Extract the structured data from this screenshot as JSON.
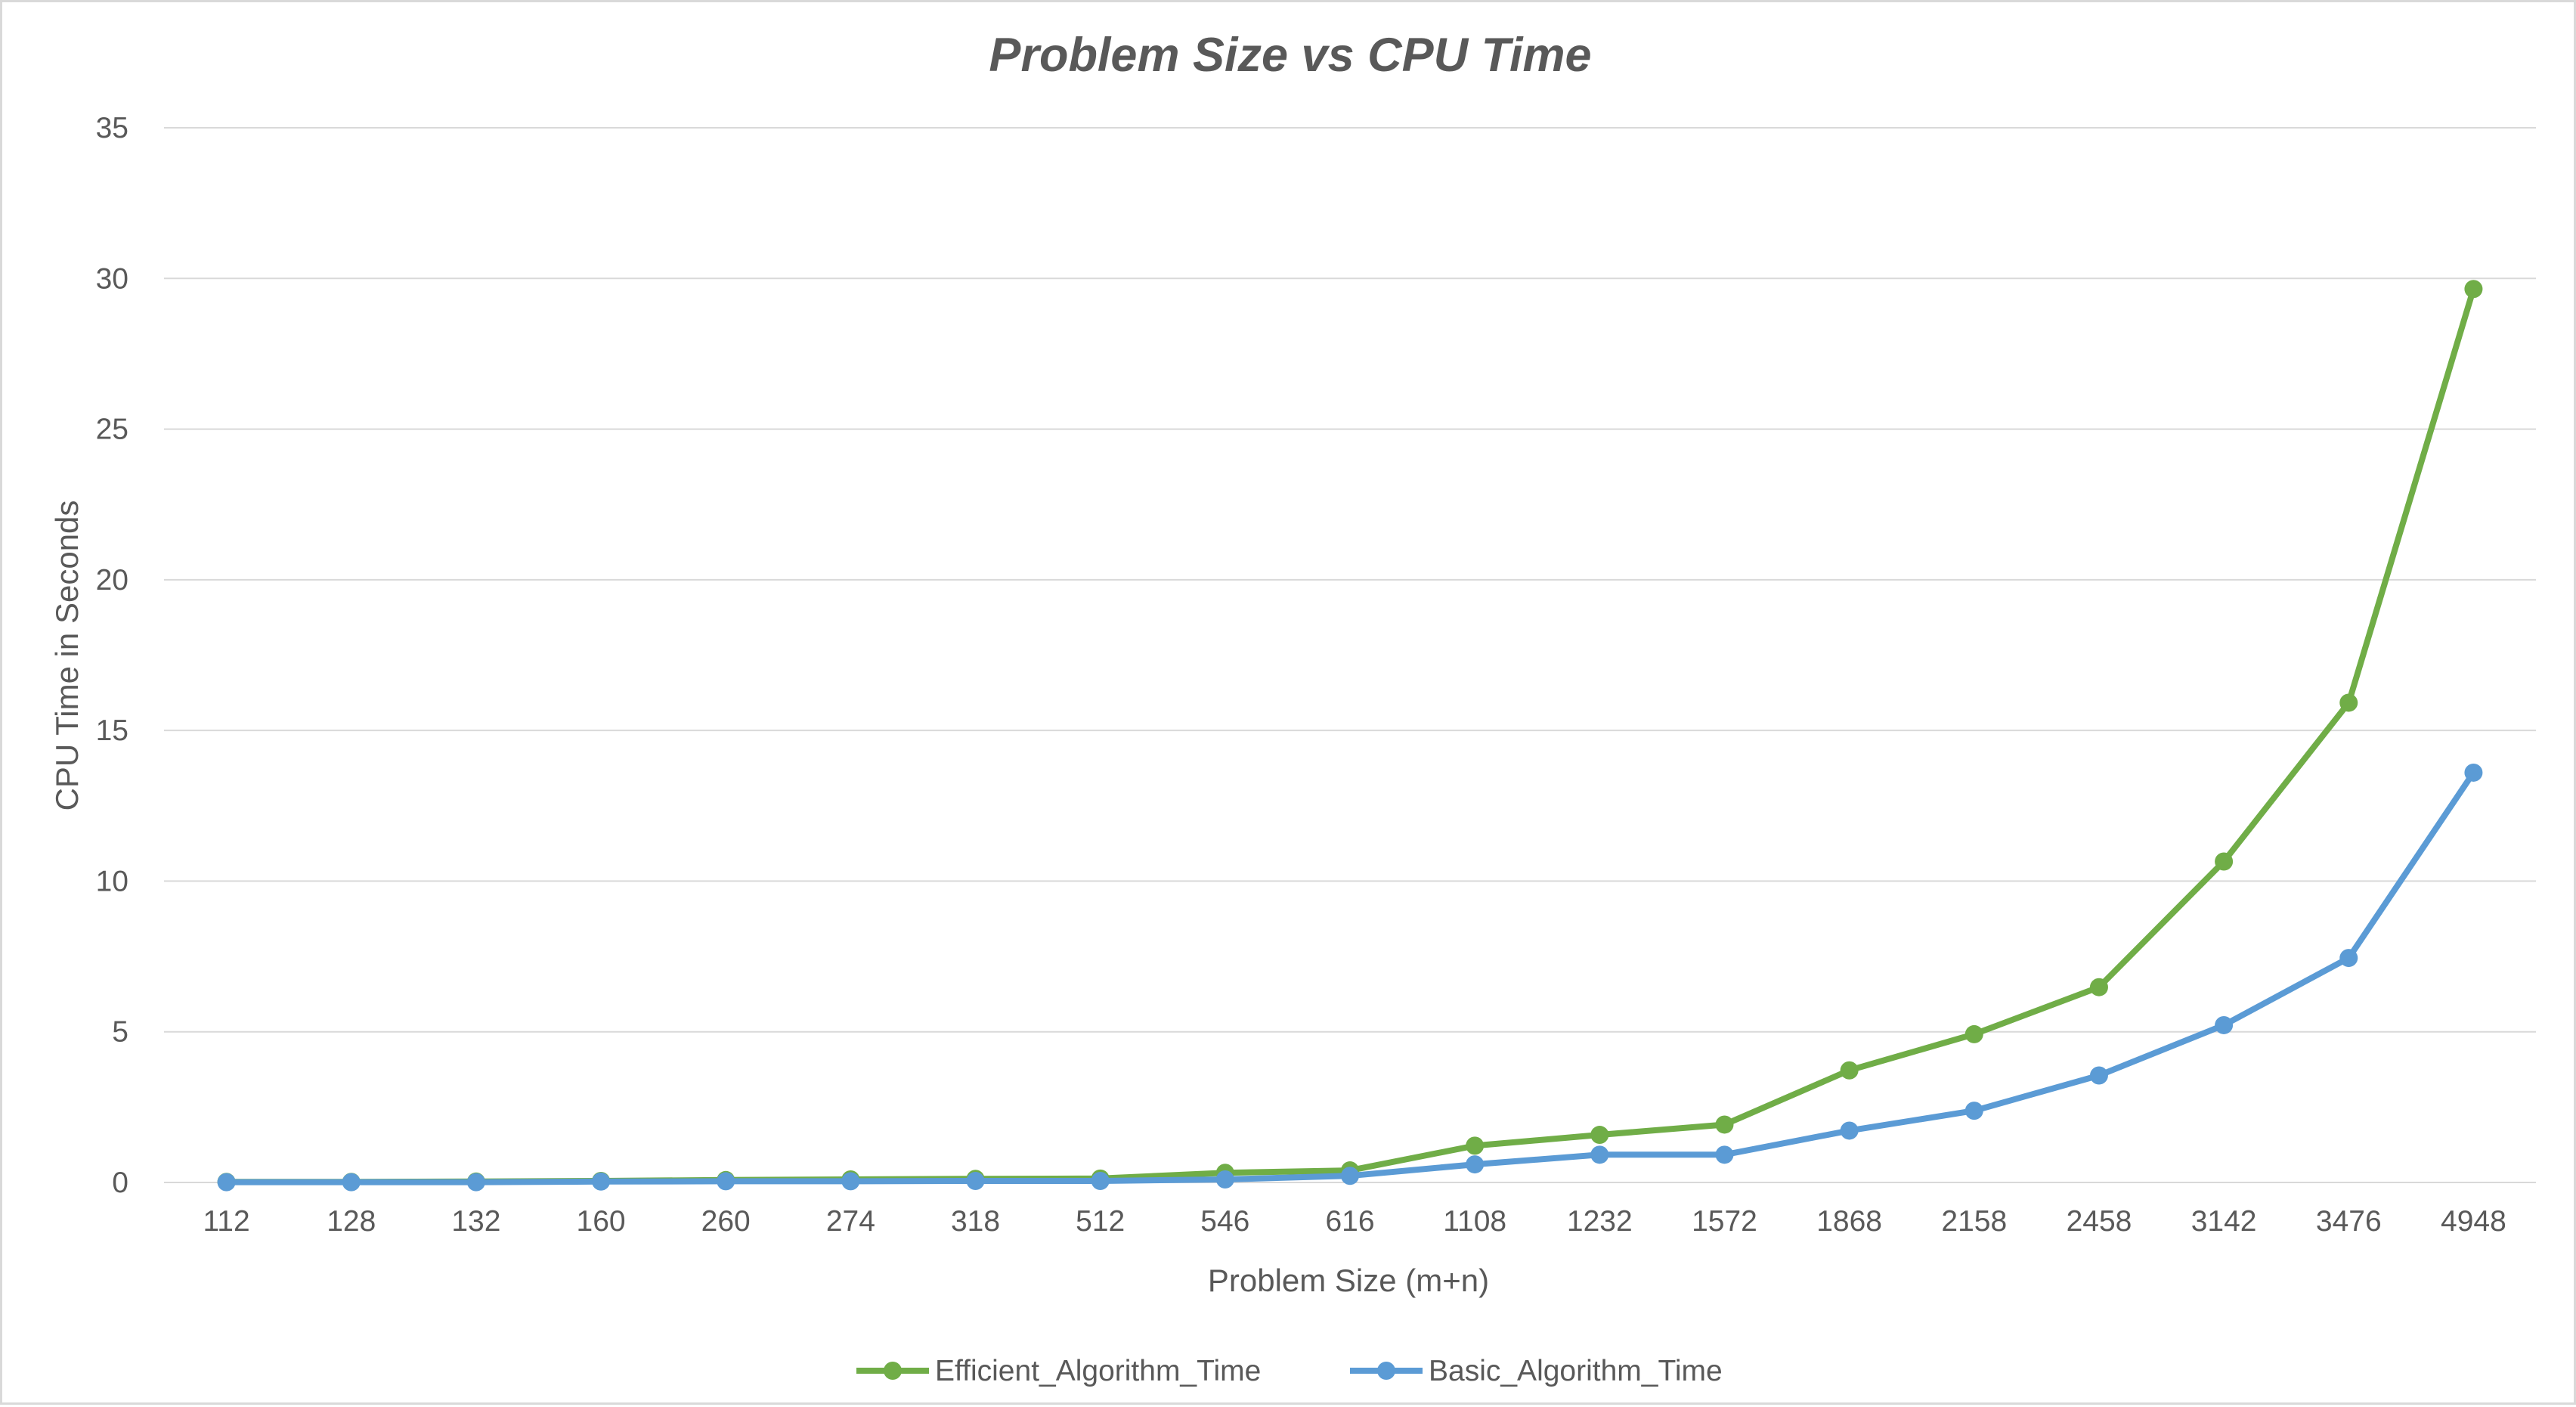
{
  "chart_data": {
    "type": "line",
    "title": "Problem Size vs CPU Time",
    "xlabel": "Problem Size (m+n)",
    "ylabel": "CPU Time in Seconds",
    "ylim": [
      0,
      35
    ],
    "yticks": [
      "0",
      "5",
      "10",
      "15",
      "20",
      "25",
      "30",
      "35"
    ],
    "grid": true,
    "legend_position": "bottom",
    "categories": [
      "112",
      "128",
      "132",
      "160",
      "260",
      "274",
      "318",
      "512",
      "546",
      "616",
      "1108",
      "1232",
      "1572",
      "1868",
      "2158",
      "2458",
      "3142",
      "3476",
      "4948"
    ],
    "series": [
      {
        "name": "Efficient_Algorithm_Time",
        "color": "#70ad47",
        "values": [
          0.02,
          0.02,
          0.03,
          0.05,
          0.08,
          0.1,
          0.12,
          0.13,
          0.32,
          0.4,
          1.22,
          1.58,
          1.92,
          3.72,
          4.92,
          6.48,
          10.65,
          15.92,
          29.65
        ]
      },
      {
        "name": "Basic_Algorithm_Time",
        "color": "#5b9bd5",
        "values": [
          0.01,
          0.01,
          0.01,
          0.03,
          0.04,
          0.04,
          0.05,
          0.05,
          0.1,
          0.22,
          0.6,
          0.92,
          0.92,
          1.72,
          2.38,
          3.55,
          5.22,
          7.45,
          13.6
        ]
      }
    ]
  }
}
